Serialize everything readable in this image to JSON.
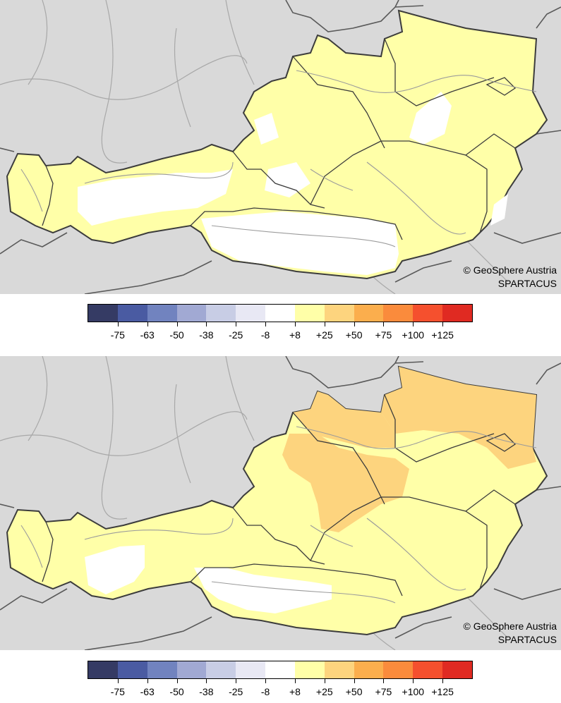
{
  "maps": [
    {
      "credit_line1": "© GeoSphere Austria",
      "credit_line2": "SPARTACUS",
      "dominant_class": "+8 to +25",
      "zones": [
        {
          "class": "+8 to +25",
          "color": "#ffffa8"
        },
        {
          "class": "-8 to +8",
          "color": "#ffffff"
        }
      ]
    },
    {
      "credit_line1": "© GeoSphere Austria",
      "credit_line2": "SPARTACUS",
      "dominant_class": "+8 to +25",
      "zones": [
        {
          "class": "+25 to +50",
          "color": "#fdd47e"
        },
        {
          "class": "+8 to +25",
          "color": "#ffffa8"
        },
        {
          "class": "-8 to +8",
          "color": "#ffffff"
        }
      ]
    }
  ],
  "legend": {
    "swatches": [
      "#353b64",
      "#4a5ba2",
      "#7183bf",
      "#a1a9d3",
      "#c8cde5",
      "#e8e8f4",
      "#ffffff",
      "#ffffa8",
      "#fdd47e",
      "#fbae4d",
      "#fa8b3c",
      "#f5502e",
      "#e02a22"
    ],
    "ticks": [
      "-75",
      "-63",
      "-50",
      "-38",
      "-25",
      "-8",
      "+8",
      "+25",
      "+50",
      "+75",
      "+100",
      "+125"
    ]
  },
  "colors": {
    "background_land": "#d9d9d9",
    "border": "#3c3c3c",
    "rivers": "#9b9b9b"
  }
}
